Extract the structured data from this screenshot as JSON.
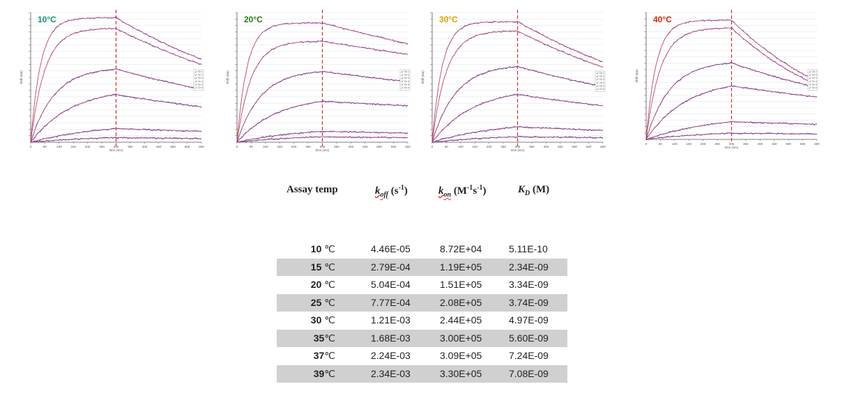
{
  "chart_data": [
    {
      "type": "line",
      "title": "10°C",
      "title_color": "#1a9080",
      "ylabel": "Shift (nm)",
      "xlabel": "time (sec)",
      "x_ticks": [
        "0",
        "50",
        "100",
        "150",
        "200",
        "250",
        "300",
        "350",
        "400",
        "450",
        "500",
        "550",
        "600"
      ],
      "xlim": [
        0,
        600
      ],
      "dissociation_start": 300,
      "legend": [
        "Ch 1",
        "Ch 2",
        "Ch 3",
        "Ch 4",
        "Ch 5",
        "Ch 6"
      ],
      "legend_placement": "right",
      "series": [
        {
          "plateau": 0.96,
          "end": 0.64
        },
        {
          "plateau": 0.88,
          "end": 0.6
        },
        {
          "plateau": 0.58,
          "end": 0.42
        },
        {
          "plateau": 0.42,
          "end": 0.31
        },
        {
          "plateau": 0.15,
          "end": 0.12
        },
        {
          "plateau": 0.05,
          "end": 0.04
        }
      ]
    },
    {
      "type": "line",
      "title": "20°C",
      "title_color": "#2a7a12",
      "ylabel": "Shift (nm)",
      "xlabel": "time (sec)",
      "x_ticks": [
        "0",
        "50",
        "100",
        "150",
        "200",
        "250",
        "300",
        "350",
        "400",
        "450",
        "500",
        "550",
        "600"
      ],
      "xlim": [
        0,
        600
      ],
      "dissociation_start": 300,
      "legend": [
        "Ch 1",
        "Ch 2",
        "Ch 3",
        "Ch 4",
        "Ch 5",
        "Ch 6"
      ],
      "legend_placement": "right",
      "series": [
        {
          "plateau": 0.92,
          "end": 0.76
        },
        {
          "plateau": 0.78,
          "end": 0.68
        },
        {
          "plateau": 0.56,
          "end": 0.48
        },
        {
          "plateau": 0.36,
          "end": 0.32
        },
        {
          "plateau": 0.12,
          "end": 0.1
        },
        {
          "plateau": 0.06,
          "end": 0.05
        }
      ]
    },
    {
      "type": "line",
      "title": "30°C",
      "title_color": "#e0a000",
      "ylabel": "Shift (nm)",
      "xlabel": "time (sec)",
      "x_ticks": [
        "0",
        "50",
        "100",
        "150",
        "200",
        "250",
        "300",
        "350",
        "400",
        "450",
        "500",
        "550",
        "600"
      ],
      "xlim": [
        0,
        600
      ],
      "dissociation_start": 300,
      "legend": [
        "Ch 1",
        "Ch 2",
        "Ch 3",
        "Ch 4",
        "Ch 5",
        "Ch 6"
      ],
      "legend_placement": "right",
      "series": [
        {
          "plateau": 0.93,
          "end": 0.62
        },
        {
          "plateau": 0.86,
          "end": 0.58
        },
        {
          "plateau": 0.6,
          "end": 0.44
        },
        {
          "plateau": 0.42,
          "end": 0.32
        },
        {
          "plateau": 0.17,
          "end": 0.13
        },
        {
          "plateau": 0.06,
          "end": 0.05
        }
      ]
    },
    {
      "type": "line",
      "title": "40°C",
      "title_color": "#e02000",
      "ylabel": "Shift (nm)",
      "xlabel": "time (sec)",
      "x_ticks": [
        "0",
        "50",
        "100",
        "150",
        "200",
        "250",
        "300",
        "350",
        "400",
        "450",
        "500",
        "550",
        "600"
      ],
      "xlim": [
        0,
        600
      ],
      "dissociation_start": 300,
      "legend": [
        "Ch 1",
        "Ch 2",
        "Ch 3",
        "Ch 4",
        "Ch 5",
        "Ch 6"
      ],
      "legend_placement": "right",
      "series": [
        {
          "plateau": 0.94,
          "end": 0.46
        },
        {
          "plateau": 0.88,
          "end": 0.43
        },
        {
          "plateau": 0.62,
          "end": 0.42
        },
        {
          "plateau": 0.48,
          "end": 0.38
        },
        {
          "plateau": 0.2,
          "end": 0.17
        },
        {
          "plateau": 0.07,
          "end": 0.06
        }
      ]
    },
    {
      "type": "table",
      "headers": {
        "temp": "Assay temp",
        "koff_sym": "k",
        "koff_sub": "off",
        "koff_unit_pre": " (s",
        "koff_unit_sup": "-1",
        "koff_unit_post": ")",
        "kon_sym": "k",
        "kon_sub": "on",
        "kon_unit_pre": " (M",
        "kon_unit_sup1": "-1",
        "kon_unit_mid": "s",
        "kon_unit_sup2": "-1",
        "kon_unit_post": ")",
        "kd_sym": "K",
        "kd_sub": "D",
        "kd_unit": " (M)"
      },
      "rows": [
        {
          "temp": "10",
          "unit": " ℃",
          "koff": "4.46E-05",
          "kon": "8.72E+04",
          "kd": "5.11E-10"
        },
        {
          "temp": "15",
          "unit": " ℃",
          "koff": "2.79E-04",
          "kon": "1.19E+05",
          "kd": "2.34E-09"
        },
        {
          "temp": "20",
          "unit": " ℃",
          "koff": "5.04E-04",
          "kon": "1.51E+05",
          "kd": "3.34E-09"
        },
        {
          "temp": "25",
          "unit": " ℃",
          "koff": "7.77E-04",
          "kon": "2.08E+05",
          "kd": "3.74E-09"
        },
        {
          "temp": "30",
          "unit": " ℃",
          "koff": "1.21E-03",
          "kon": "2.44E+05",
          "kd": "4.97E-09"
        },
        {
          "temp": "35",
          "unit": "℃",
          "koff": "1.68E-03",
          "kon": "3.00E+05",
          "kd": "5.60E-09"
        },
        {
          "temp": "37",
          "unit": "℃",
          "koff": "2.24E-03",
          "kon": "3.09E+05",
          "kd": "7.24E-09"
        },
        {
          "temp": "39",
          "unit": "℃",
          "koff": "2.34E-03",
          "kon": "3.30E+05",
          "kd": "7.08E-09"
        }
      ]
    }
  ]
}
